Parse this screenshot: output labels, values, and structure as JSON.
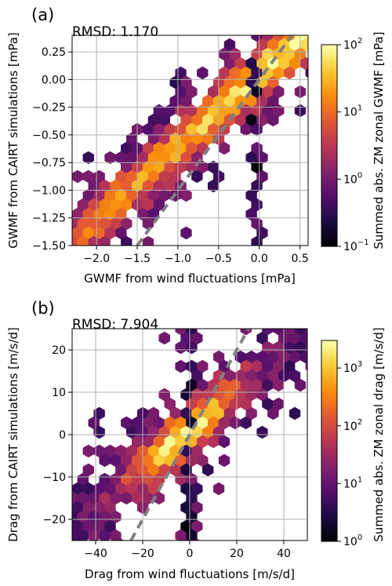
{
  "chart_data": [
    {
      "type": "hexbin",
      "panel_label": "(a)",
      "annotation": "RMSD: 1.170",
      "xlabel": "GWMF from wind fluctuations [mPa]",
      "ylabel": "GWMF from CAIRT simulations [mPa]",
      "xlim": [
        -2.3,
        0.6
      ],
      "ylim": [
        -1.5,
        0.4
      ],
      "xticks": [
        -2.0,
        -1.5,
        -1.0,
        -0.5,
        0.0,
        0.5
      ],
      "xtick_labels": [
        "−2.0",
        "−1.5",
        "−1.0",
        "−0.5",
        "0.0",
        "0.5"
      ],
      "yticks": [
        -1.5,
        -1.25,
        -1.0,
        -0.75,
        -0.5,
        -0.25,
        0.0,
        0.25
      ],
      "ytick_labels": [
        "−1.50",
        "−1.25",
        "−1.00",
        "−0.75",
        "−0.50",
        "−0.25",
        "0.00",
        "0.25"
      ],
      "grid": true,
      "reference_line": "1:1 dashed gray",
      "colorbar": {
        "label": "Summed abs. ZM zonal GWMF [mPa]",
        "scale": "log",
        "range": [
          0.1,
          100
        ],
        "ticks": [
          0.1,
          1,
          10,
          100
        ],
        "tick_base": "10",
        "tick_exponents": [
          "−1",
          "0",
          "1",
          "2"
        ],
        "colormap": "inferno"
      },
      "density_ridge": [
        {
          "x": -2.2,
          "y": -1.4,
          "v": 0.6
        },
        {
          "x": -1.5,
          "y": -0.95,
          "v": 1.1
        },
        {
          "x": -1.0,
          "y": -0.5,
          "v": 1.4
        },
        {
          "x": -0.6,
          "y": -0.25,
          "v": 1.6
        },
        {
          "x": -0.25,
          "y": 0.0,
          "v": 1.85
        },
        {
          "x": 0.0,
          "y": 0.1,
          "v": 1.95
        }
      ]
    },
    {
      "type": "hexbin",
      "panel_label": "(b)",
      "annotation": "RMSD: 7.904",
      "xlabel": "Drag from wind fluctuations [m/s/d]",
      "ylabel": "Drag from CAIRT simulations [m/s/d]",
      "xlim": [
        -50,
        50
      ],
      "ylim": [
        -25,
        25
      ],
      "xticks": [
        -40,
        -20,
        0,
        20,
        40
      ],
      "xtick_labels": [
        "−40",
        "−20",
        "0",
        "20",
        "40"
      ],
      "yticks": [
        -20,
        -10,
        0,
        10,
        20
      ],
      "ytick_labels": [
        "−20",
        "−10",
        "0",
        "10",
        "20"
      ],
      "grid": true,
      "reference_line": "1:1 dashed gray",
      "colorbar": {
        "label": "Summed abs. ZM zonal drag [m/s/d]",
        "scale": "log",
        "range": [
          1,
          3000
        ],
        "ticks": [
          1,
          10,
          100,
          1000
        ],
        "tick_base": "10",
        "tick_exponents": [
          "0",
          "1",
          "2",
          "3"
        ],
        "colormap": "inferno"
      },
      "density_ridge": [
        {
          "x": -40,
          "y": -20,
          "v": 1.0
        },
        {
          "x": -20,
          "y": -8,
          "v": 1.6
        },
        {
          "x": -8,
          "y": -2,
          "v": 2.3
        },
        {
          "x": 0,
          "y": 0,
          "v": 2.8
        },
        {
          "x": 10,
          "y": 5,
          "v": 2.3
        },
        {
          "x": 30,
          "y": 15,
          "v": 1.4
        }
      ]
    }
  ]
}
